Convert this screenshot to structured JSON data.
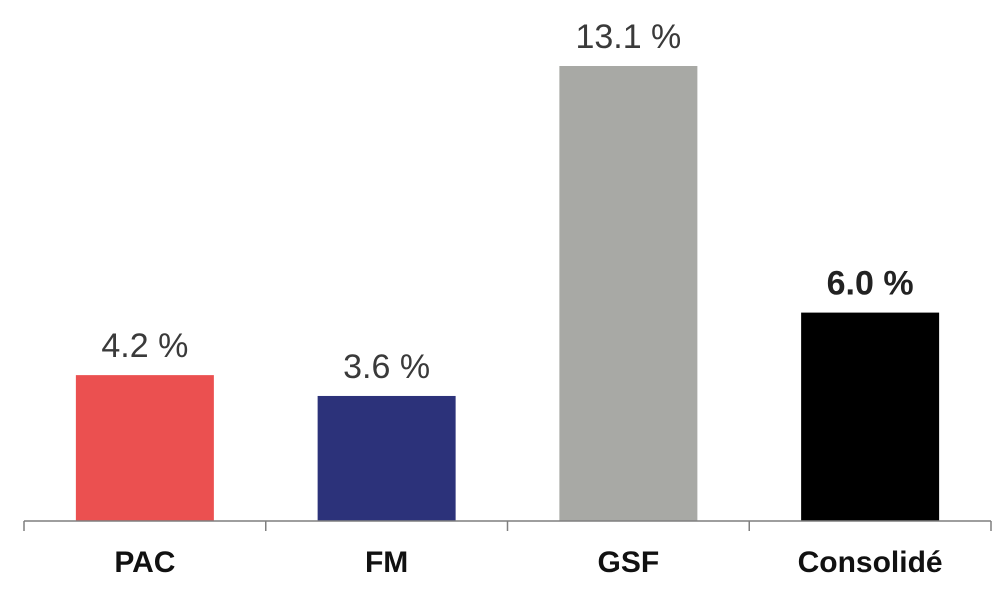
{
  "chart_data": {
    "type": "bar",
    "categories": [
      "PAC",
      "FM",
      "GSF",
      "Consolidé"
    ],
    "values": [
      4.2,
      3.6,
      13.1,
      6.0
    ],
    "value_labels": [
      "4.2 %",
      "3.6 %",
      "13.1 %",
      "6.0 %"
    ],
    "colors": [
      "#EB5050",
      "#2C327A",
      "#A8A9A5",
      "#000000"
    ],
    "bold_value_labels": [
      false,
      false,
      false,
      true
    ],
    "ylim": [
      0,
      13.1
    ],
    "grid": false,
    "legend": "none"
  }
}
